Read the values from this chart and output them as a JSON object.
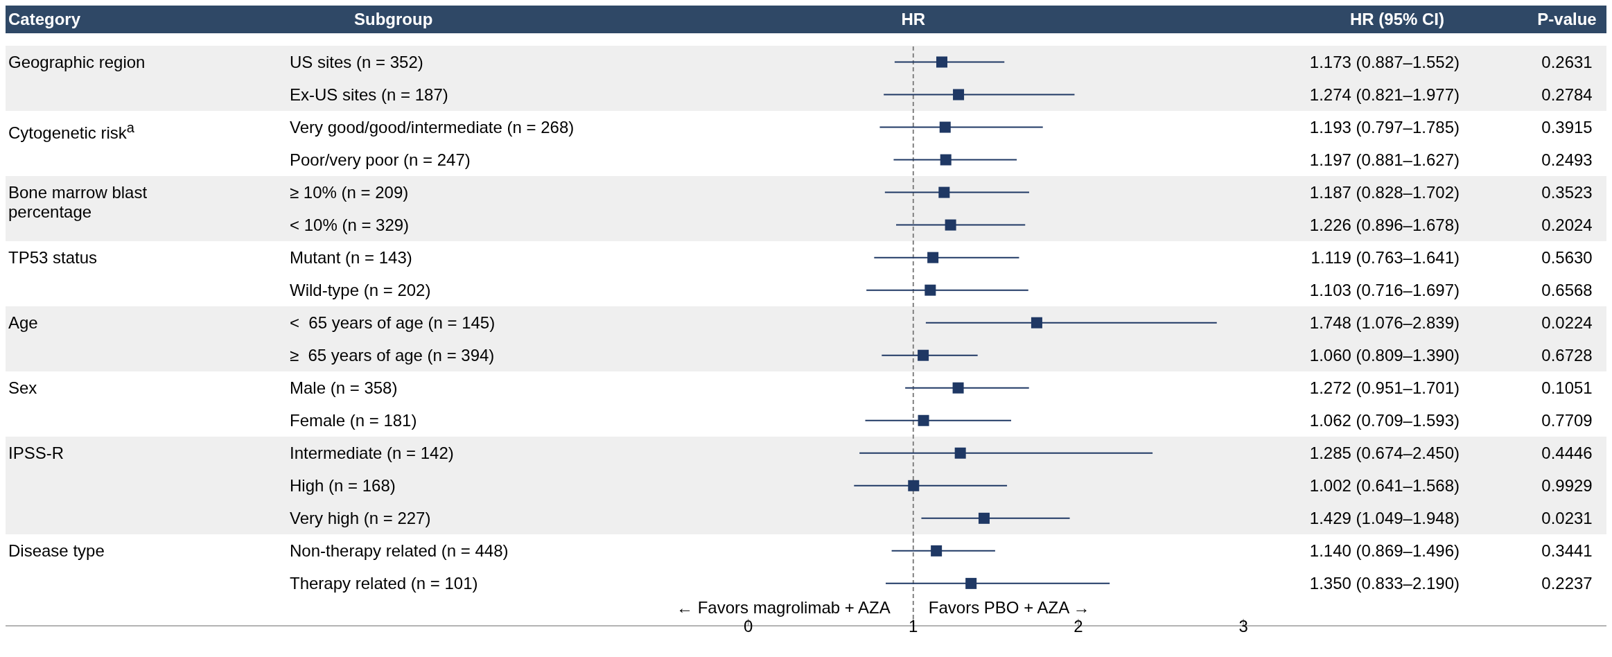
{
  "chart_data": {
    "type": "scatter",
    "orientation": "horizontal",
    "marker": "square",
    "color": "#1f3864",
    "categories": [
      "US sites (n = 352)",
      "Ex-US sites (n = 187)",
      "Very good/good/intermediate (n = 268)",
      "Poor/very poor (n = 247)",
      "≥ 10% (n = 209)",
      "< 10% (n = 329)",
      "Mutant (n = 143)",
      "Wild-type (n = 202)",
      "<  65 years of age (n = 145)",
      "≥  65 years of age (n = 394)",
      "Male (n = 358)",
      "Female (n = 181)",
      "Intermediate (n = 142)",
      "High (n = 168)",
      "Very high (n = 227)",
      "Non-therapy related (n = 448)",
      "Therapy related (n = 101)"
    ],
    "values": [
      1.173,
      1.274,
      1.193,
      1.197,
      1.187,
      1.226,
      1.119,
      1.103,
      1.748,
      1.06,
      1.272,
      1.062,
      1.285,
      1.002,
      1.429,
      1.14,
      1.35
    ],
    "errors": [
      [
        0.887,
        1.552
      ],
      [
        0.821,
        1.977
      ],
      [
        0.797,
        1.785
      ],
      [
        0.881,
        1.627
      ],
      [
        0.828,
        1.702
      ],
      [
        0.896,
        1.678
      ],
      [
        0.763,
        1.641
      ],
      [
        0.716,
        1.697
      ],
      [
        1.076,
        2.839
      ],
      [
        0.809,
        1.39
      ],
      [
        0.951,
        1.701
      ],
      [
        0.709,
        1.593
      ],
      [
        0.674,
        2.45
      ],
      [
        0.641,
        1.568
      ],
      [
        1.049,
        1.948
      ],
      [
        0.869,
        1.496
      ],
      [
        0.833,
        2.19
      ]
    ],
    "annotations": [
      "Category",
      "Subgroup",
      "HR",
      "HR (95% CI)",
      "P-value",
      "← Favors magrolimab + AZA",
      "Favors PBO + AZA →",
      "Geographic region",
      "Cytogenetic risk$^{a}$",
      "Bone marrow blast percentage",
      "TP53 status",
      "Age",
      "Sex",
      "IPSS-R",
      "Disease type",
      "1.173 (0.887–1.552)",
      "1.274 (0.821–1.977)",
      "1.193 (0.797–1.785)",
      "1.197 (0.881–1.627)",
      "1.187 (0.828–1.702)",
      "1.226 (0.896–1.678)",
      "1.119 (0.763–1.641)",
      "1.103 (0.716–1.697)",
      "1.748 (1.076–2.839)",
      "1.060 (0.809–1.390)",
      "1.272 (0.951–1.701)",
      "1.062 (0.709–1.593)",
      "1.285 (0.674–2.450)",
      "1.002 (0.641–1.568)",
      "1.429 (1.049–1.948)",
      "1.140 (0.869–1.496)",
      "1.350 (0.833–2.190)",
      "0.2631",
      "0.2784",
      "0.3915",
      "0.2493",
      "0.3523",
      "0.2024",
      "0.5630",
      "0.6568",
      "0.0224",
      "0.6728",
      "0.1051",
      "0.7709",
      "0.4446",
      "0.9929",
      "0.0231",
      "0.3441",
      "0.2237"
    ],
    "xlim": [
      -4.5,
      5.2
    ],
    "xticks": [
      0,
      1,
      2,
      3
    ],
    "ref_lines": [
      {
        "axis": "x",
        "value": 1,
        "color": "#808080",
        "line_style": "dashed"
      }
    ],
    "bands": [
      {
        "axis": "y",
        "from": "US sites (n = 352)",
        "to": "Ex-US sites (n = 187)",
        "color": "#efefef"
      },
      {
        "axis": "y",
        "from": "≥ 10% (n = 209)",
        "to": "< 10% (n = 329)",
        "color": "#efefef"
      },
      {
        "axis": "y",
        "from": "<  65 years of age (n = 145)",
        "to": "≥  65 years of age (n = 394)",
        "color": "#efefef"
      },
      {
        "axis": "y",
        "from": "Intermediate (n = 142)",
        "to": "Very high (n = 227)",
        "color": "#efefef"
      }
    ]
  }
}
